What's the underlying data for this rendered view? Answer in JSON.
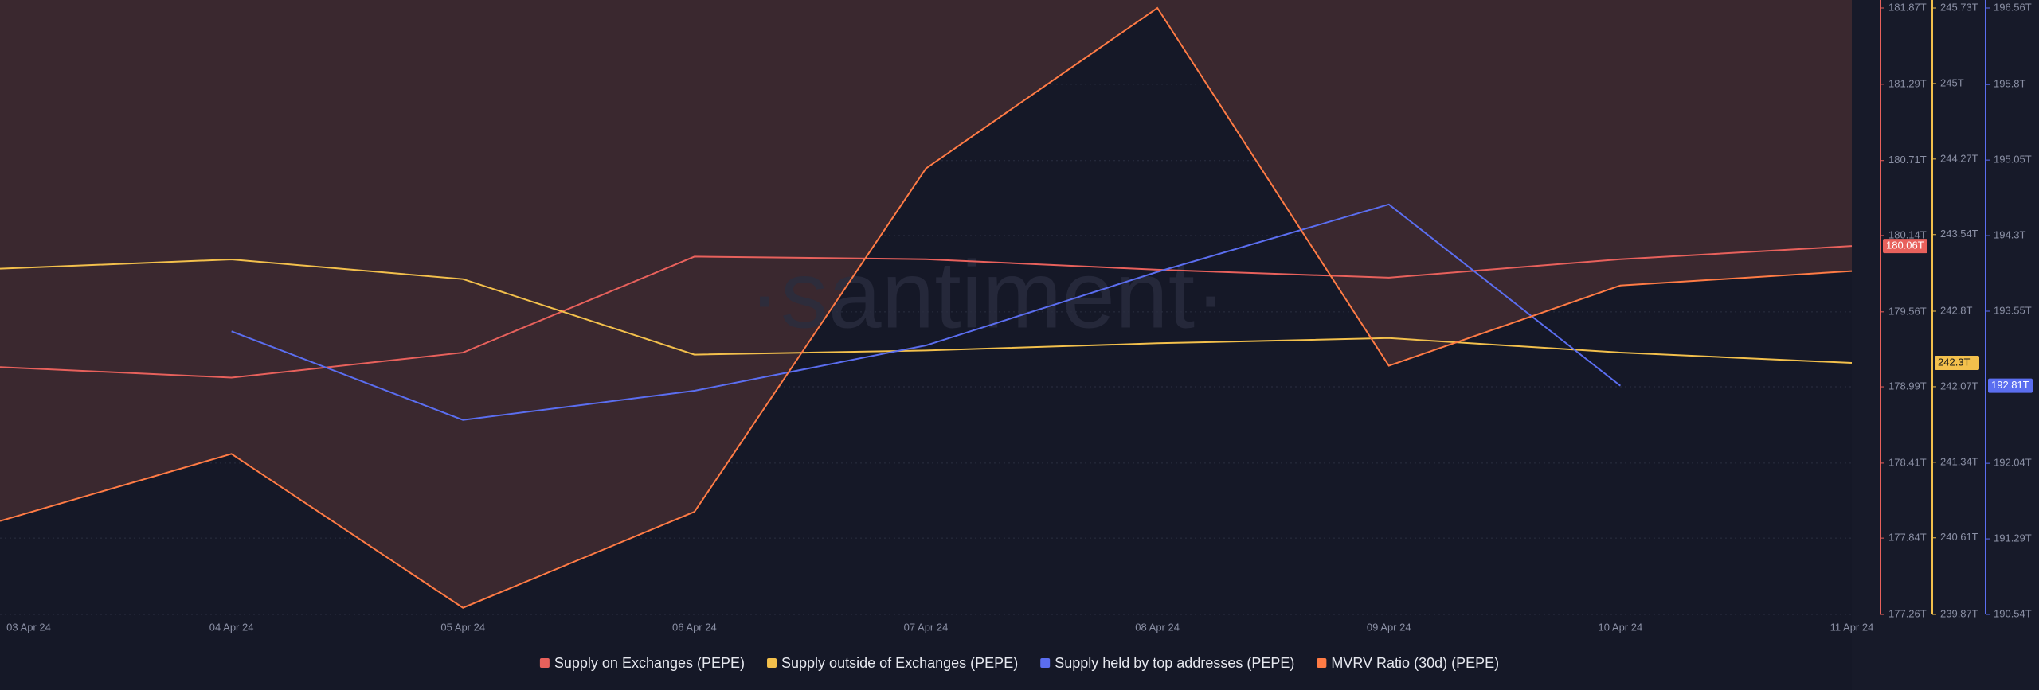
{
  "chart_data": {
    "type": "line",
    "watermark": "·santiment·",
    "categories": [
      "03 Apr 24",
      "04 Apr 24",
      "05 Apr 24",
      "06 Apr 24",
      "07 Apr 24",
      "08 Apr 24",
      "09 Apr 24",
      "10 Apr 24",
      "11 Apr 24"
    ],
    "series": [
      {
        "name": "Supply on Exchanges (PEPE)",
        "color": "#e8615c",
        "axis": "y",
        "values": [
          179.14,
          179.06,
          179.25,
          179.98,
          179.96,
          179.88,
          179.82,
          179.96,
          180.06
        ],
        "current_label": "180.06T"
      },
      {
        "name": "Supply outside of Exchanges (PEPE)",
        "color": "#f3c04c",
        "axis": "y2",
        "values": [
          243.21,
          243.3,
          243.11,
          242.38,
          242.42,
          242.49,
          242.54,
          242.4,
          242.3
        ],
        "current_label": "242.3T"
      },
      {
        "name": "Supply held by top addresses (PEPE)",
        "color": "#5b6ef0",
        "axis": "y3",
        "values": [
          null,
          193.35,
          192.47,
          192.76,
          193.21,
          193.94,
          194.61,
          192.81,
          null
        ],
        "current_label": "192.81T"
      },
      {
        "name": "MVRV Ratio (30d) (PEPE)",
        "color": "#ff7b45",
        "axis": "y",
        "fill_above": "#3a282f",
        "values": [
          177.97,
          178.48,
          177.31,
          178.04,
          180.65,
          181.87,
          179.15,
          179.76,
          179.87
        ]
      }
    ],
    "ylim": [
      177.26,
      181.87
    ],
    "yticks": [
      {
        "value": 181.87,
        "label": "181.87T"
      },
      {
        "value": 181.29,
        "label": "181.29T"
      },
      {
        "value": 180.71,
        "label": "180.71T"
      },
      {
        "value": 180.14,
        "label": "180.14T"
      },
      {
        "value": 179.56,
        "label": "179.56T"
      },
      {
        "value": 178.99,
        "label": "178.99T"
      },
      {
        "value": 178.41,
        "label": "178.41T"
      },
      {
        "value": 177.84,
        "label": "177.84T"
      },
      {
        "value": 177.26,
        "label": "177.26T"
      }
    ],
    "y2lim": [
      239.87,
      245.73
    ],
    "y2ticks": [
      {
        "value": 245.73,
        "label": "245.73T"
      },
      {
        "value": 245,
        "label": "245T"
      },
      {
        "value": 244.27,
        "label": "244.27T"
      },
      {
        "value": 243.54,
        "label": "243.54T"
      },
      {
        "value": 242.8,
        "label": "242.8T"
      },
      {
        "value": 242.07,
        "label": "242.07T"
      },
      {
        "value": 241.34,
        "label": "241.34T"
      },
      {
        "value": 240.61,
        "label": "240.61T"
      },
      {
        "value": 239.87,
        "label": "239.87T"
      }
    ],
    "y3lim": [
      190.54,
      196.56
    ],
    "y3ticks": [
      {
        "value": 196.56,
        "label": "196.56T"
      },
      {
        "value": 195.8,
        "label": "195.8T"
      },
      {
        "value": 195.05,
        "label": "195.05T"
      },
      {
        "value": 194.3,
        "label": "194.3T"
      },
      {
        "value": 193.55,
        "label": "193.55T"
      },
      {
        "value": 192.04,
        "label": "192.04T"
      },
      {
        "value": 191.29,
        "label": "191.29T"
      },
      {
        "value": 190.54,
        "label": "190.54T"
      }
    ],
    "grid": true,
    "legend": "bottom"
  }
}
